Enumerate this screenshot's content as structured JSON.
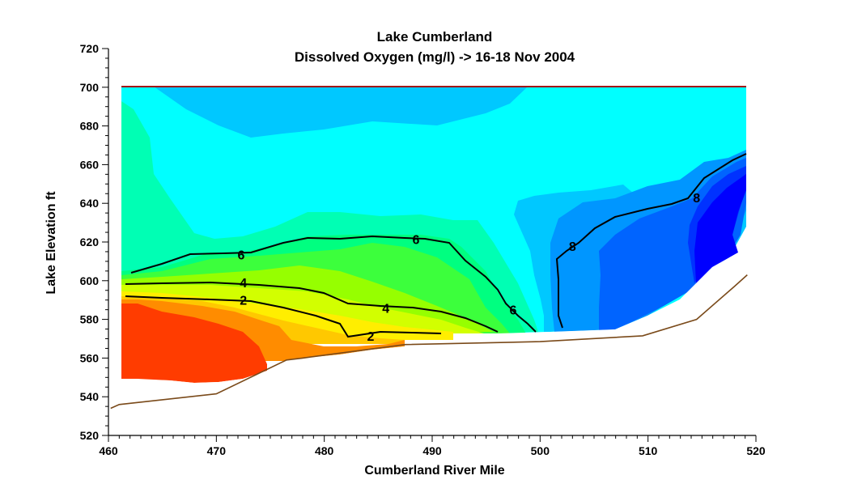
{
  "chart_data": {
    "type": "contour",
    "title": "Lake Cumberland",
    "subtitle": "Dissolved Oxygen (mg/l) -> 16-18 Nov 2004",
    "xlabel": "Cumberland River Mile",
    "ylabel": "Lake  Elevation  ft",
    "xlim": [
      460,
      520
    ],
    "ylim": [
      520,
      720
    ],
    "x_ticks": [
      460,
      470,
      480,
      490,
      500,
      510,
      520
    ],
    "y_ticks": [
      520,
      540,
      560,
      580,
      600,
      620,
      640,
      660,
      680,
      700,
      720
    ],
    "water_surface_elevation": 700,
    "contour_levels": [
      2,
      4,
      6,
      8
    ],
    "bottom_profile": [
      [
        460.2,
        534
      ],
      [
        461,
        536
      ],
      [
        470,
        541.5
      ],
      [
        476.5,
        559
      ],
      [
        478,
        560
      ],
      [
        487.5,
        567
      ],
      [
        500,
        568.5
      ],
      [
        509.5,
        571.5
      ],
      [
        514.5,
        580
      ],
      [
        518,
        597
      ],
      [
        519.2,
        603
      ]
    ],
    "contour_label_positions": [
      {
        "text": "6",
        "x": 472.3,
        "y": 613.5
      },
      {
        "text": "6",
        "x": 488.5,
        "y": 621.5
      },
      {
        "text": "4",
        "x": 472.5,
        "y": 599
      },
      {
        "text": "4",
        "x": 485.7,
        "y": 586
      },
      {
        "text": "2",
        "x": 472.5,
        "y": 590
      },
      {
        "text": "2",
        "x": 484.3,
        "y": 571.5
      },
      {
        "text": "6",
        "x": 497.5,
        "y": 585
      },
      {
        "text": "8",
        "x": 503,
        "y": 618
      },
      {
        "text": "8",
        "x": 514.5,
        "y": 643
      }
    ],
    "colors": {
      "water_surface": "#a01818",
      "bottom_profile": "#7a4a1a",
      "contour_line": "#000000",
      "fill_scale": [
        "#ff3c00",
        "#ff8c00",
        "#ffc800",
        "#ffee00",
        "#d2ff00",
        "#96ff00",
        "#3cff3c",
        "#00ff80",
        "#00ffb4",
        "#00ffff",
        "#00c8ff",
        "#0096ff",
        "#0064ff",
        "#0032ff",
        "#0000ff"
      ]
    }
  }
}
